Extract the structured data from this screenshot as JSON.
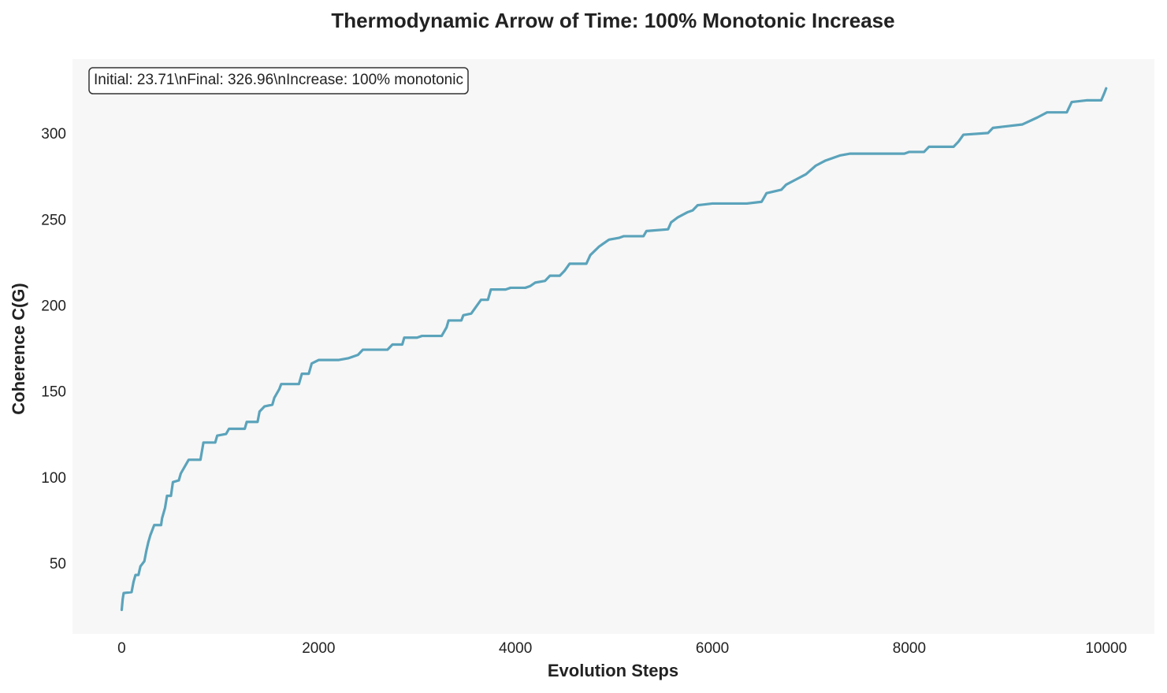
{
  "chart_data": {
    "type": "line",
    "title": "Thermodynamic Arrow of Time: 100% Monotonic Increase",
    "x_label": "Evolution Steps",
    "y_label": "Coherence C(G)",
    "annotation": "Initial: 23.71\\nFinal: 326.96\\nIncrease: 100% monotonic",
    "xlim": [
      -500,
      10490
    ],
    "ylim": [
      9.7,
      344
    ],
    "xticks": [
      0,
      2000,
      4000,
      6000,
      8000,
      10000
    ],
    "yticks": [
      50,
      100,
      150,
      200,
      250,
      300
    ],
    "grid": false,
    "x": [
      0,
      10,
      20,
      100,
      120,
      140,
      170,
      190,
      230,
      250,
      270,
      290,
      330,
      400,
      410,
      440,
      460,
      500,
      520,
      580,
      600,
      640,
      680,
      800,
      830,
      950,
      970,
      1060,
      1090,
      1250,
      1270,
      1380,
      1400,
      1450,
      1530,
      1550,
      1600,
      1620,
      1800,
      1830,
      1900,
      1930,
      2000,
      2200,
      2300,
      2400,
      2450,
      2700,
      2750,
      2850,
      2870,
      3000,
      3050,
      3250,
      3300,
      3320,
      3450,
      3470,
      3550,
      3600,
      3650,
      3720,
      3750,
      3900,
      3950,
      4100,
      4150,
      4200,
      4300,
      4350,
      4450,
      4500,
      4550,
      4720,
      4760,
      4850,
      4950,
      5050,
      5100,
      5300,
      5330,
      5550,
      5580,
      5650,
      5750,
      5800,
      5850,
      6000,
      6350,
      6500,
      6550,
      6700,
      6750,
      6850,
      6950,
      7050,
      7150,
      7300,
      7400,
      7950,
      8000,
      8150,
      8200,
      8450,
      8500,
      8550,
      8800,
      8850,
      9000,
      9150,
      9300,
      9400,
      9600,
      9650,
      9800,
      9950,
      9980,
      10000
    ],
    "series": [
      {
        "name": "Coherence",
        "color": "#5ba3bb",
        "values": [
          23.71,
          30,
          33.5,
          34,
          40,
          44,
          44,
          49,
          52,
          58,
          63,
          67,
          73,
          73,
          77,
          83,
          90,
          90,
          98,
          99,
          103,
          107,
          111,
          111,
          121,
          121,
          125,
          126,
          129,
          129,
          133,
          133,
          139,
          142,
          143,
          147,
          152,
          155,
          155,
          161,
          161,
          167,
          169,
          169,
          170,
          172,
          175,
          175,
          178,
          178,
          182,
          182,
          183,
          183,
          188,
          192,
          192,
          195,
          196,
          200,
          204,
          204,
          210,
          210,
          211,
          211,
          212,
          214,
          215,
          218,
          218,
          221,
          225,
          225,
          230,
          235,
          239,
          240,
          241,
          241,
          244,
          245,
          249,
          252,
          255,
          256,
          259,
          260,
          260,
          261,
          266,
          268,
          271,
          274,
          277,
          282,
          285,
          288,
          289,
          289,
          290,
          290,
          293,
          293,
          296,
          300,
          301,
          304,
          305,
          306,
          310,
          313,
          313,
          319,
          320,
          320,
          324,
          326.96
        ]
      }
    ]
  }
}
